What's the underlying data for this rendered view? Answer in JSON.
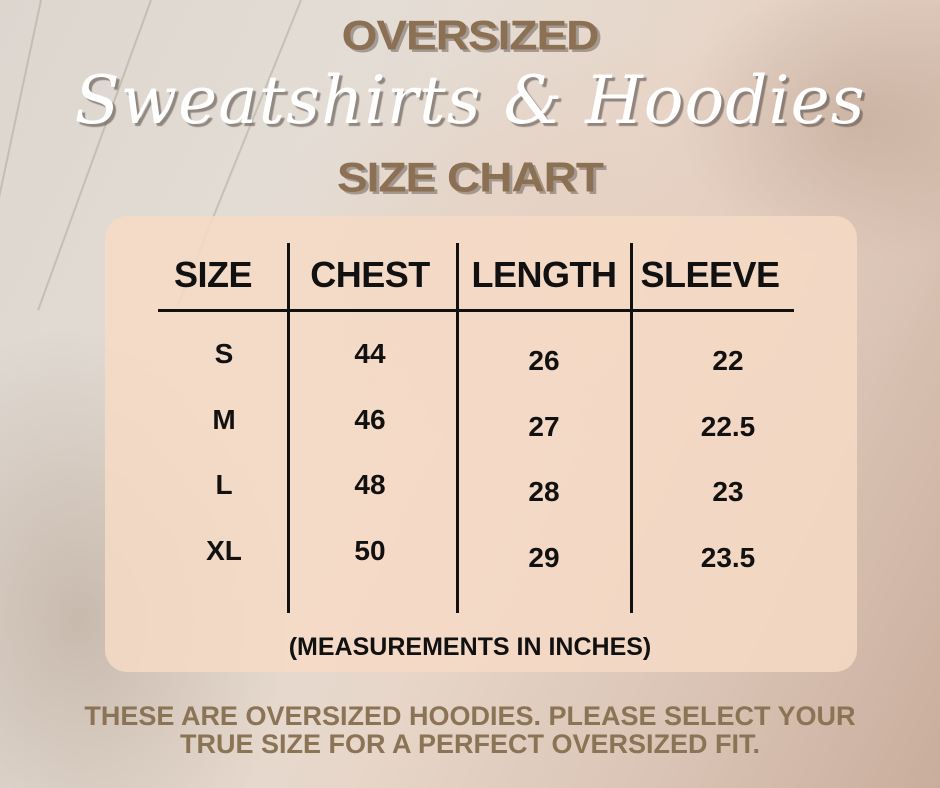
{
  "header": {
    "line1": "OVERSIZED",
    "line2": "Sweatshirts & Hoodies",
    "line3": "SIZE CHART"
  },
  "table": {
    "columns": [
      "SIZE",
      "CHEST",
      "LENGTH",
      "SLEEVE"
    ],
    "rows": [
      {
        "size": "S",
        "chest": "44",
        "length": "26",
        "sleeve": "22"
      },
      {
        "size": "M",
        "chest": "46",
        "length": "27",
        "sleeve": "22.5"
      },
      {
        "size": "L",
        "chest": "48",
        "length": "28",
        "sleeve": "23"
      },
      {
        "size": "XL",
        "chest": "50",
        "length": "29",
        "sleeve": "23.5"
      }
    ],
    "note": "(MEASUREMENTS IN INCHES)"
  },
  "footer": {
    "line1": "THESE ARE OVERSIZED HOODIES. PLEASE SELECT YOUR",
    "line2": "TRUE SIZE FOR A PERFECT OVERSIZED FIT."
  },
  "colors": {
    "title": "#8b7053",
    "panel": "#f6dac6",
    "text": "#111111"
  }
}
